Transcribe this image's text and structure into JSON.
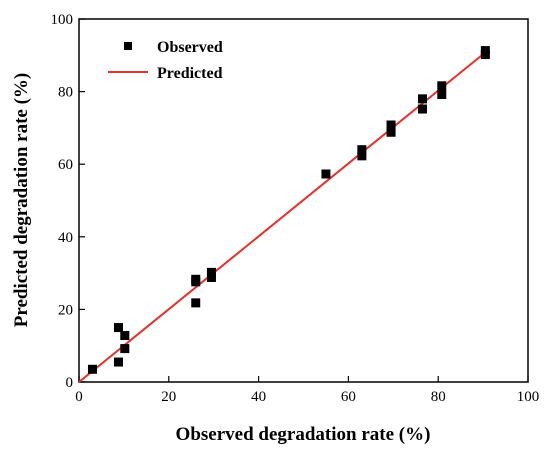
{
  "chart_data": {
    "type": "scatter",
    "xlabel": "Observed degradation rate (%)",
    "ylabel": "Predicted degradation rate (%)",
    "xlim": [
      0,
      100
    ],
    "ylim": [
      0,
      100
    ],
    "x_ticks": [
      0,
      20,
      40,
      60,
      80,
      100
    ],
    "y_ticks": [
      0,
      20,
      40,
      60,
      80,
      100
    ],
    "grid": false,
    "legend_position": "top-left",
    "series": [
      {
        "name": "Observed",
        "kind": "scatter",
        "marker": "square",
        "color": "#000000",
        "points": [
          {
            "x": 3.0,
            "y": 3.5
          },
          {
            "x": 8.8,
            "y": 15.0
          },
          {
            "x": 8.8,
            "y": 5.5
          },
          {
            "x": 10.2,
            "y": 12.8
          },
          {
            "x": 10.2,
            "y": 9.2
          },
          {
            "x": 26.0,
            "y": 28.3
          },
          {
            "x": 26.0,
            "y": 27.6
          },
          {
            "x": 26.0,
            "y": 21.8
          },
          {
            "x": 29.5,
            "y": 30.2
          },
          {
            "x": 29.5,
            "y": 28.8
          },
          {
            "x": 55.0,
            "y": 57.3
          },
          {
            "x": 63.0,
            "y": 64.0
          },
          {
            "x": 63.0,
            "y": 62.3
          },
          {
            "x": 69.5,
            "y": 70.8
          },
          {
            "x": 69.5,
            "y": 68.8
          },
          {
            "x": 76.5,
            "y": 78.0
          },
          {
            "x": 76.5,
            "y": 75.2
          },
          {
            "x": 80.8,
            "y": 81.6
          },
          {
            "x": 80.8,
            "y": 79.2
          },
          {
            "x": 90.5,
            "y": 91.3
          },
          {
            "x": 90.5,
            "y": 90.2
          }
        ]
      },
      {
        "name": "Predicted",
        "kind": "line",
        "color": "#e8302b",
        "points": [
          {
            "x": 0,
            "y": 0
          },
          {
            "x": 90.5,
            "y": 90.8
          }
        ]
      }
    ]
  }
}
